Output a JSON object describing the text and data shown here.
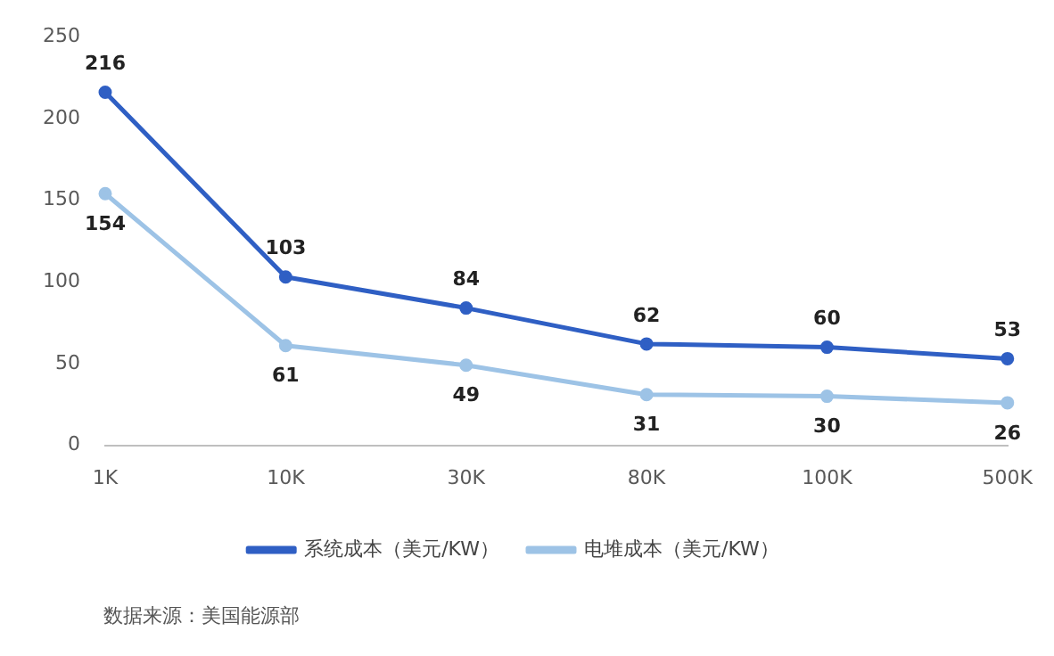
{
  "chart_data": {
    "type": "line",
    "categories": [
      "1K",
      "10K",
      "30K",
      "80K",
      "100K",
      "500K"
    ],
    "series": [
      {
        "name": "系统成本（美元/KW）",
        "color": "#2f5fc4",
        "values": [
          216,
          103,
          84,
          62,
          60,
          53
        ]
      },
      {
        "name": "电堆成本（美元/KW）",
        "color": "#9dc3e6",
        "values": [
          154,
          61,
          49,
          31,
          30,
          26
        ]
      }
    ],
    "ylim": [
      0,
      250
    ],
    "yticks": [
      0,
      50,
      100,
      150,
      200,
      250
    ],
    "grid": false,
    "legend": "bottom",
    "marker": "circle",
    "line_style": "solid",
    "data_labels": true,
    "annotations": [
      "数据来源：美国能源部"
    ]
  }
}
